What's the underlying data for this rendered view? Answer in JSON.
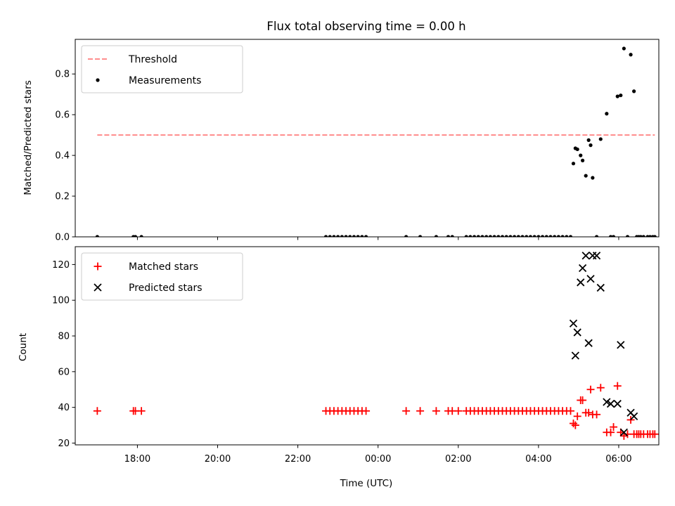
{
  "chart_data": [
    {
      "type": "scatter",
      "title": "Flux total observing time = 0.00 h",
      "ylabel": "Matched/Predicted stars",
      "xlabel": "",
      "ylim": [
        0,
        0.97
      ],
      "yticks": [
        0.0,
        0.2,
        0.4,
        0.6,
        0.8
      ],
      "ytick_labels": [
        "0.0",
        "0.2",
        "0.4",
        "0.6",
        "0.8"
      ],
      "xlim": [
        16.45,
        31.0
      ],
      "xticks": [
        18,
        20,
        22,
        24,
        26,
        28,
        30
      ],
      "xtick_labels": [],
      "legend": {
        "position": "upper left",
        "entries": [
          "Threshold",
          "Measurements"
        ]
      },
      "threshold": {
        "name": "Threshold",
        "y": 0.5,
        "x_range": [
          17.0,
          30.9
        ],
        "color": "#ff7f7f",
        "style": "dashed"
      },
      "series": [
        {
          "name": "Measurements",
          "marker": "dot",
          "color": "#000000",
          "x": [
            17.0,
            17.9,
            17.95,
            18.1,
            22.7,
            22.8,
            22.9,
            23.0,
            23.1,
            23.2,
            23.3,
            23.4,
            23.5,
            23.6,
            23.7,
            24.7,
            25.05,
            25.45,
            25.75,
            25.85,
            26.2,
            26.3,
            26.4,
            26.5,
            26.6,
            26.7,
            26.8,
            26.9,
            27.0,
            27.1,
            27.2,
            27.3,
            27.4,
            27.5,
            27.6,
            27.7,
            27.8,
            27.9,
            28.0,
            28.1,
            28.2,
            28.3,
            28.4,
            28.5,
            28.6,
            28.7,
            28.8,
            28.87,
            28.92,
            28.97,
            29.05,
            29.1,
            29.18,
            29.25,
            29.3,
            29.35,
            29.45,
            29.55,
            29.7,
            29.8,
            29.87,
            29.97,
            30.05,
            30.13,
            30.22,
            30.3,
            30.38,
            30.45,
            30.5,
            30.55,
            30.62,
            30.72,
            30.78,
            30.85,
            30.9
          ],
          "y": [
            0.0,
            0.0,
            0.0,
            0.0,
            0.0,
            0.0,
            0.0,
            0.0,
            0.0,
            0.0,
            0.0,
            0.0,
            0.0,
            0.0,
            0.0,
            0.0,
            0.0,
            0.0,
            0.0,
            0.0,
            0.0,
            0.0,
            0.0,
            0.0,
            0.0,
            0.0,
            0.0,
            0.0,
            0.0,
            0.0,
            0.0,
            0.0,
            0.0,
            0.0,
            0.0,
            0.0,
            0.0,
            0.0,
            0.0,
            0.0,
            0.0,
            0.0,
            0.0,
            0.0,
            0.0,
            0.0,
            0.0,
            0.36,
            0.435,
            0.43,
            0.4,
            0.375,
            0.3,
            0.475,
            0.45,
            0.29,
            0.0,
            0.48,
            0.605,
            0.0,
            0.0,
            0.69,
            0.695,
            0.925,
            0.0,
            0.895,
            0.715,
            0.0,
            0.0,
            0.0,
            0.0,
            0.0,
            0.0,
            0.0,
            0.0
          ]
        }
      ]
    },
    {
      "type": "scatter",
      "title": "",
      "ylabel": "Count",
      "xlabel": "Time (UTC)",
      "ylim": [
        19,
        130
      ],
      "yticks": [
        20,
        40,
        60,
        80,
        100,
        120
      ],
      "ytick_labels": [
        "20",
        "40",
        "60",
        "80",
        "100",
        "120"
      ],
      "xlim": [
        16.45,
        31.0
      ],
      "xticks": [
        18,
        20,
        22,
        24,
        26,
        28,
        30
      ],
      "xtick_labels": [
        "18:00",
        "20:00",
        "22:00",
        "00:00",
        "02:00",
        "04:00",
        "06:00"
      ],
      "legend": {
        "position": "upper left",
        "entries": [
          "Matched stars",
          "Predicted stars"
        ]
      },
      "series": [
        {
          "name": "Matched stars",
          "marker": "plus",
          "color": "#ff0000",
          "x": [
            17.0,
            17.9,
            17.95,
            18.1,
            22.7,
            22.8,
            22.9,
            23.0,
            23.1,
            23.2,
            23.3,
            23.4,
            23.5,
            23.6,
            23.7,
            24.7,
            25.05,
            25.45,
            25.75,
            25.85,
            26.0,
            26.2,
            26.3,
            26.4,
            26.5,
            26.6,
            26.7,
            26.8,
            26.9,
            27.0,
            27.1,
            27.2,
            27.3,
            27.4,
            27.5,
            27.6,
            27.7,
            27.8,
            27.9,
            28.0,
            28.1,
            28.2,
            28.3,
            28.4,
            28.5,
            28.6,
            28.7,
            28.8,
            28.87,
            28.92,
            28.97,
            29.05,
            29.1,
            29.18,
            29.25,
            29.3,
            29.35,
            29.45,
            29.55,
            29.7,
            29.8,
            29.87,
            29.97,
            30.05,
            30.13,
            30.22,
            30.3,
            30.38,
            30.45,
            30.5,
            30.55,
            30.62,
            30.72,
            30.78,
            30.85,
            30.9
          ],
          "y": [
            38,
            38,
            38,
            38,
            38,
            38,
            38,
            38,
            38,
            38,
            38,
            38,
            38,
            38,
            38,
            38,
            38,
            38,
            38,
            38,
            38,
            38,
            38,
            38,
            38,
            38,
            38,
            38,
            38,
            38,
            38,
            38,
            38,
            38,
            38,
            38,
            38,
            38,
            38,
            38,
            38,
            38,
            38,
            38,
            38,
            38,
            38,
            38,
            31,
            30,
            35,
            44,
            44,
            37,
            37,
            50,
            36,
            36,
            51,
            26,
            26,
            29,
            52,
            26,
            24,
            25,
            33,
            25,
            25,
            25,
            25,
            25,
            25,
            25,
            25,
            25
          ]
        },
        {
          "name": "Predicted stars",
          "marker": "x",
          "color": "#000000",
          "x": [
            28.87,
            28.92,
            28.97,
            29.05,
            29.1,
            29.18,
            29.25,
            29.3,
            29.35,
            29.45,
            29.55,
            29.7,
            29.8,
            29.97,
            30.05,
            30.13,
            30.3,
            30.38
          ],
          "y": [
            87,
            69,
            82,
            110,
            118,
            125,
            76,
            112,
            125,
            125,
            107,
            43,
            42,
            42,
            75,
            26,
            37,
            35
          ]
        }
      ]
    }
  ]
}
